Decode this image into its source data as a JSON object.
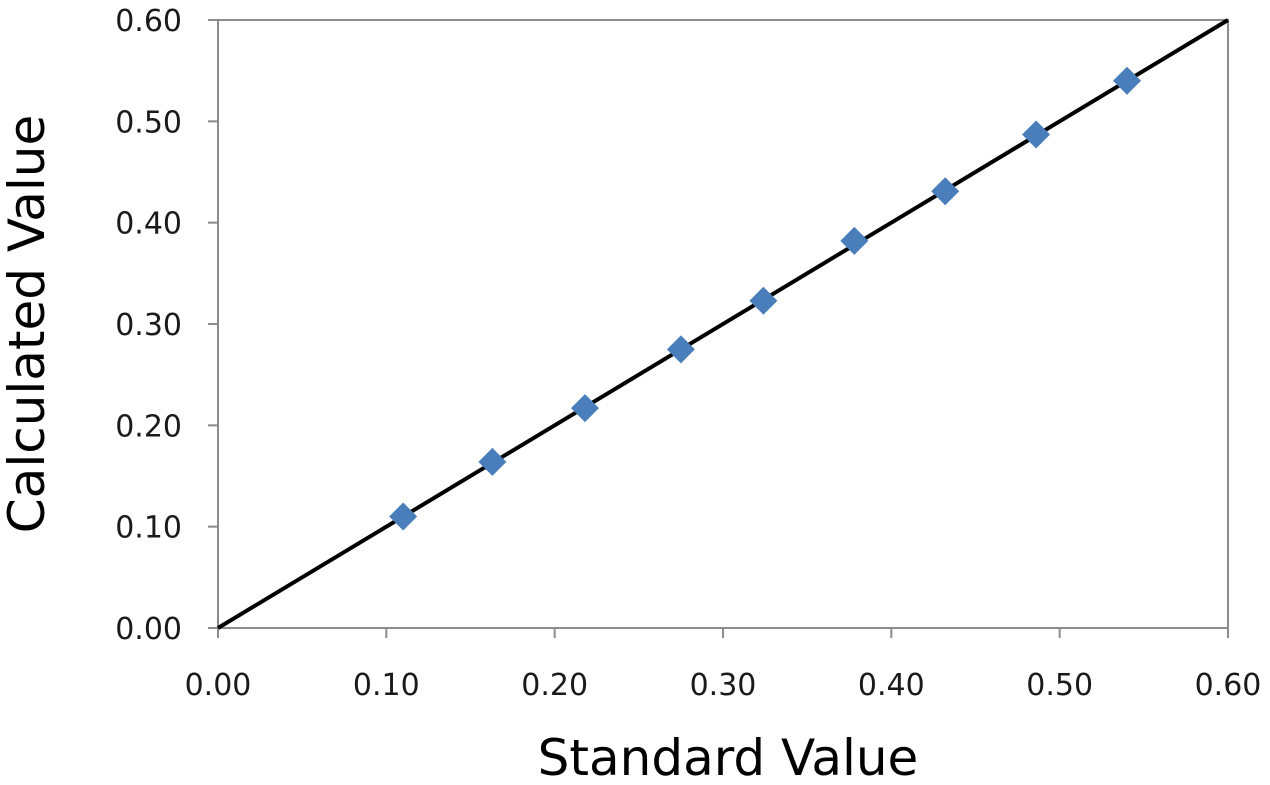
{
  "chart_data": {
    "type": "scatter",
    "title": "",
    "xlabel": "Standard Value",
    "ylabel": "Calculated Value",
    "xlim": [
      0,
      0.6
    ],
    "ylim": [
      0,
      0.6
    ],
    "x_ticks": [
      "0.00",
      "0.10",
      "0.20",
      "0.30",
      "0.40",
      "0.50",
      "0.60"
    ],
    "y_ticks": [
      "0.00",
      "0.10",
      "0.20",
      "0.30",
      "0.40",
      "0.50",
      "0.60"
    ],
    "tick_values": [
      0,
      0.1,
      0.2,
      0.3,
      0.4,
      0.5,
      0.6
    ],
    "grid": false,
    "legend": "none",
    "series": [
      {
        "type": "scatter",
        "marker": "diamond",
        "color": "#4a7ebb",
        "x": [
          0.11,
          0.163,
          0.218,
          0.275,
          0.324,
          0.378,
          0.432,
          0.486,
          0.54
        ],
        "y": [
          0.11,
          0.164,
          0.217,
          0.275,
          0.323,
          0.382,
          0.431,
          0.487,
          0.54
        ]
      },
      {
        "type": "line",
        "color": "#000000",
        "x": [
          0,
          0.6
        ],
        "y": [
          0,
          0.6
        ]
      }
    ]
  }
}
